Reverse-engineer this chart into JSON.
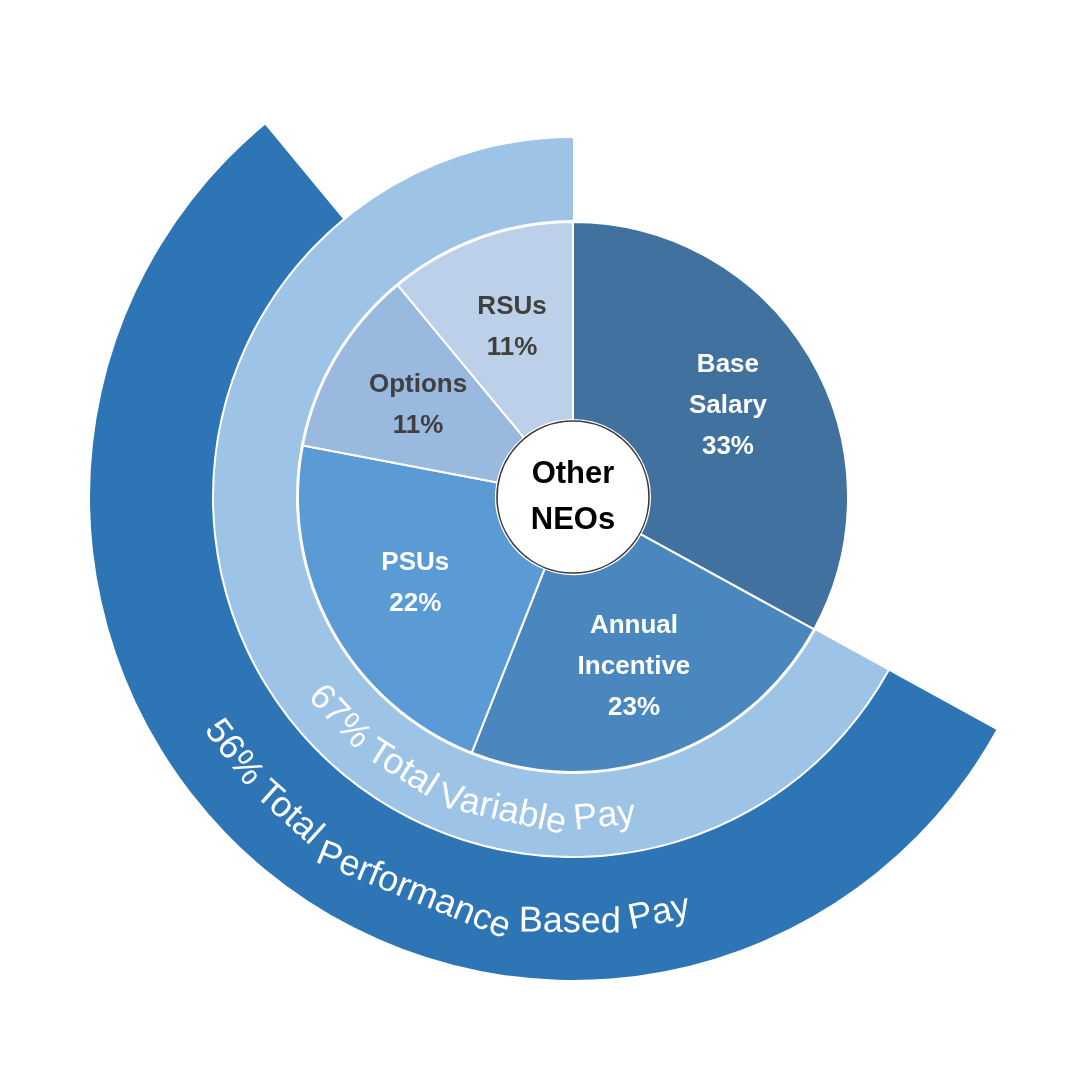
{
  "chart_data": [
    {
      "type": "donut",
      "title": "Other NEOs",
      "categories": [
        "Base Salary",
        "Annual Incentive",
        "PSUs",
        "Options",
        "RSUs"
      ],
      "values": [
        33,
        23,
        22,
        11,
        11
      ],
      "colors": [
        "#41729f",
        "#4a87be",
        "#5b9bd5",
        "#9ab9df",
        "#bdd0ea"
      ],
      "value_labels": [
        "33%",
        "23%",
        "22%",
        "11%",
        "11%"
      ]
    },
    {
      "type": "pie",
      "categories": [
        "67% Total Variable Pay"
      ],
      "values": [
        67
      ],
      "colors": [
        "#9dc3e6"
      ]
    },
    {
      "type": "pie",
      "categories": [
        "56% Total Performance Based Pay"
      ],
      "values": [
        56
      ],
      "colors": [
        "#2e75b6"
      ]
    }
  ]
}
